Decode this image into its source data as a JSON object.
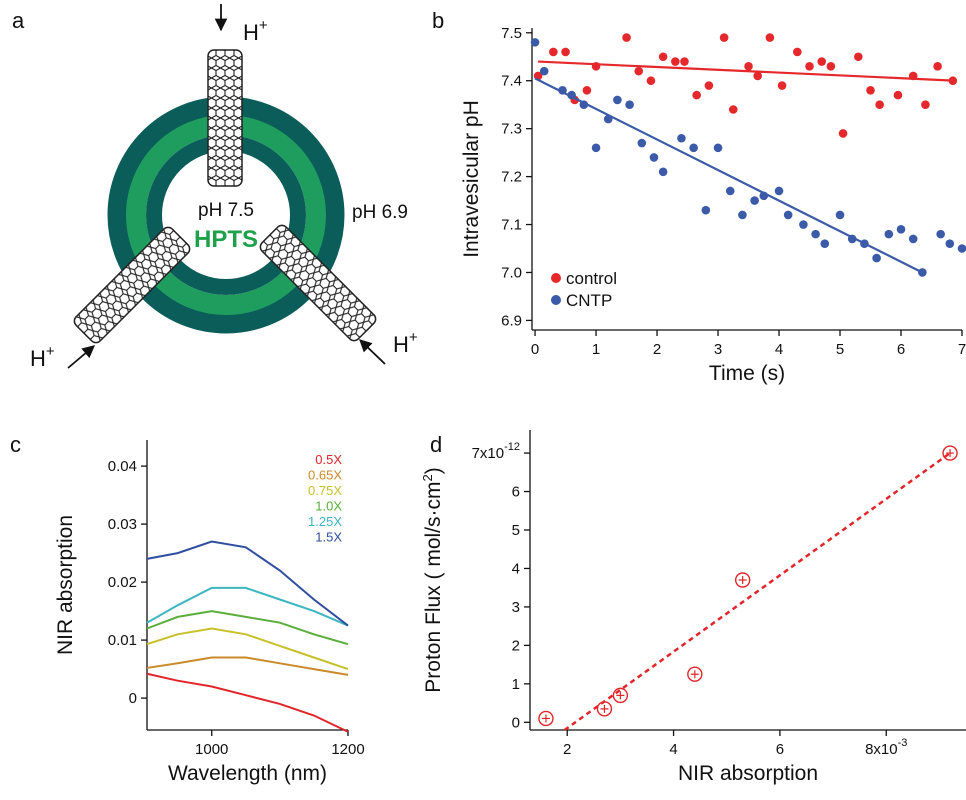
{
  "diagram": {
    "panel_label": "a",
    "proton": "H",
    "proton_charge": "+",
    "inside_ph": "pH 7.5",
    "dye": "HPTS",
    "outside_ph": "pH 6.9"
  },
  "chart_data": [
    {
      "type": "scatter",
      "panel_label": "b",
      "xlabel": "Time (s)",
      "ylabel": "Intravesicular pH",
      "xlim": [
        -0.05,
        7
      ],
      "ylim": [
        6.88,
        7.51
      ],
      "xticks": [
        0,
        1,
        2,
        3,
        4,
        5,
        6,
        7
      ],
      "yticks": [
        6.9,
        {
          "value": 7,
          "label": "7.0"
        },
        7.1,
        7.2,
        7.3,
        7.4,
        7.5
      ],
      "series": [
        {
          "name": "control",
          "color": "#e5282b",
          "x": [
            0.05,
            0.3,
            0.5,
            0.65,
            0.85,
            1.0,
            1.5,
            1.7,
            1.9,
            2.1,
            2.3,
            2.45,
            2.65,
            2.85,
            3.1,
            3.25,
            3.5,
            3.65,
            3.85,
            4.05,
            4.3,
            4.5,
            4.7,
            4.85,
            5.05,
            5.3,
            5.5,
            5.65,
            5.95,
            6.2,
            6.4,
            6.6,
            6.85
          ],
          "values": [
            7.41,
            7.46,
            7.46,
            7.36,
            7.38,
            7.43,
            7.49,
            7.42,
            7.4,
            7.45,
            7.44,
            7.44,
            7.37,
            7.39,
            7.49,
            7.34,
            7.43,
            7.41,
            7.49,
            7.39,
            7.46,
            7.43,
            7.44,
            7.43,
            7.29,
            7.45,
            7.38,
            7.35,
            7.37,
            7.41,
            7.35,
            7.43,
            7.4
          ],
          "fit_x": [
            0.05,
            6.9
          ],
          "fit_values": [
            7.44,
            7.4
          ]
        },
        {
          "name": "CNTP",
          "color": "#3b5ba8",
          "x": [
            0.0,
            0.15,
            0.45,
            0.6,
            0.8,
            1.0,
            1.2,
            1.35,
            1.55,
            1.75,
            1.95,
            2.1,
            2.4,
            2.6,
            2.8,
            3.0,
            3.2,
            3.4,
            3.6,
            3.75,
            4.0,
            4.15,
            4.4,
            4.6,
            4.75,
            5.0,
            5.2,
            5.4,
            5.6,
            5.8,
            6.0,
            6.2,
            6.35,
            6.65,
            6.8,
            7.0
          ],
          "values": [
            7.48,
            7.42,
            7.38,
            7.37,
            7.35,
            7.26,
            7.32,
            7.36,
            7.35,
            7.27,
            7.24,
            7.21,
            7.28,
            7.26,
            7.13,
            7.26,
            7.17,
            7.12,
            7.15,
            7.16,
            7.17,
            7.12,
            7.1,
            7.08,
            7.06,
            7.12,
            7.07,
            7.06,
            7.03,
            7.08,
            7.09,
            7.07,
            7.0,
            7.08,
            7.06,
            7.05
          ],
          "fit_x": [
            0.0,
            6.35
          ],
          "fit_values": [
            7.405,
            7.0
          ]
        }
      ]
    },
    {
      "type": "line",
      "panel_label": "c",
      "xlabel": "Wavelength (nm)",
      "ylabel": "NIR absorption",
      "xlim": [
        905,
        1200
      ],
      "ylim": [
        -0.0055,
        0.0445
      ],
      "xticks": [
        1000,
        1200
      ],
      "yticks": [
        0,
        0.01,
        0.02,
        0.03,
        0.04
      ],
      "x": [
        905,
        950,
        1000,
        1050,
        1100,
        1150,
        1200
      ],
      "series": [
        {
          "name": "0.5X",
          "color": "#e0262a",
          "values": [
            0.0042,
            0.003,
            0.002,
            0.0005,
            -0.001,
            -0.003,
            -0.0058
          ]
        },
        {
          "name": "0.65X",
          "color": "#c98a2a",
          "values": [
            0.0052,
            0.006,
            0.007,
            0.007,
            0.006,
            0.005,
            0.004
          ]
        },
        {
          "name": "0.75X",
          "color": "#c6c12b",
          "values": [
            0.0093,
            0.011,
            0.012,
            0.011,
            0.009,
            0.007,
            0.005
          ]
        },
        {
          "name": "1.0X",
          "color": "#5aae3b",
          "values": [
            0.012,
            0.014,
            0.015,
            0.014,
            0.013,
            0.011,
            0.0093
          ]
        },
        {
          "name": "1.25X",
          "color": "#3cb6c0",
          "values": [
            0.013,
            0.016,
            0.019,
            0.019,
            0.017,
            0.015,
            0.0125
          ]
        },
        {
          "name": "1.5X",
          "color": "#2f4e9f",
          "values": [
            0.024,
            0.025,
            0.027,
            0.026,
            0.022,
            0.017,
            0.0125
          ]
        }
      ]
    },
    {
      "type": "scatter",
      "panel_label": "d",
      "xlabel": "NIR absorption",
      "ylabel": "Proton Flux ( mol/s·cm",
      "ylabel_sup": "2",
      "ylabel_end": ")",
      "xlim": [
        1.3,
        9.5
      ],
      "ylim": [
        -0.2,
        7.6
      ],
      "xticks": [
        2,
        4,
        6,
        {
          "value": 8,
          "label": "8x10",
          "exponent": "-3"
        }
      ],
      "yticks": [
        0,
        1,
        2,
        3,
        4,
        5,
        6,
        {
          "value": 7,
          "label": "7x10",
          "exponent": "-12"
        }
      ],
      "series": [
        {
          "color": "#e0262a",
          "x": [
            1.6,
            2.7,
            3.0,
            4.4,
            5.3,
            9.2
          ],
          "values": [
            0.1,
            0.35,
            0.7,
            1.25,
            3.7,
            7.0
          ],
          "fit_x": [
            1.95,
            9.2
          ],
          "fit_values": [
            -0.2,
            7.0
          ]
        }
      ]
    }
  ]
}
